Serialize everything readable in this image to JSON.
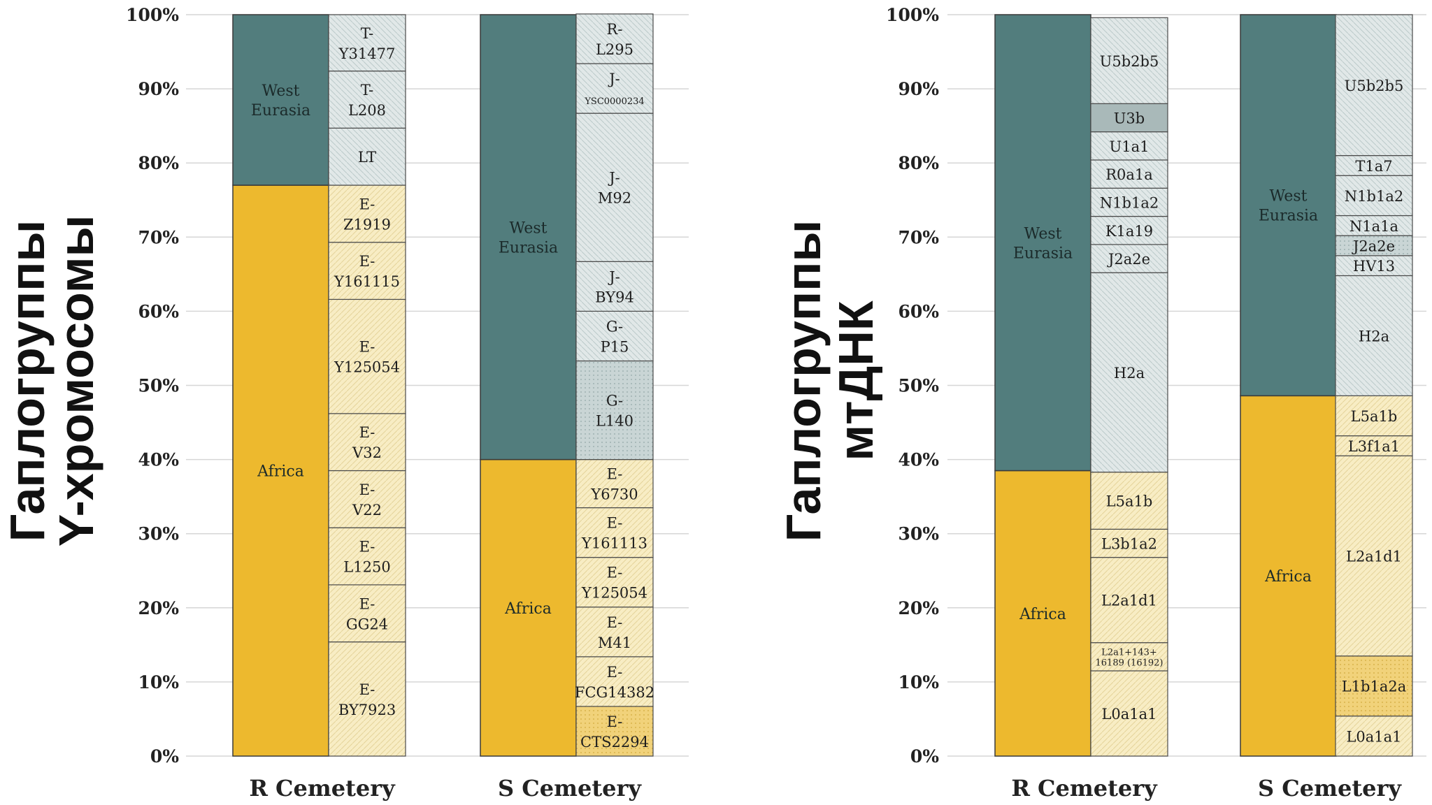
{
  "colors": {
    "africa": "#edb92e",
    "west_eurasia": "#527d7d",
    "africa_light": "#f8edc4",
    "eurasia_light": "#dbe4e4",
    "u3b": "#a9b9b9"
  },
  "titles": {
    "y": [
      "Гаплогруппы",
      "Y-хромосомы"
    ],
    "mt": [
      "Гаплогруппы",
      "мтДНК"
    ]
  },
  "chart_data": [
    {
      "type": "stacked-bar",
      "title": "Гаплогруппы Y-хромосомы",
      "ylim": [
        0,
        100
      ],
      "yticks": [
        "0%",
        "10%",
        "20%",
        "30%",
        "40%",
        "50%",
        "60%",
        "70%",
        "80%",
        "90%",
        "100%"
      ],
      "bars": [
        {
          "category": "R Cemetery",
          "regions": [
            {
              "name": "Africa",
              "value": 77
            },
            {
              "name": "West Eurasia",
              "value": 23
            }
          ],
          "haplogroups": [
            {
              "label": [
                "E-",
                "BY7923"
              ],
              "value": 15.4,
              "group": "africa"
            },
            {
              "label": [
                "E-",
                "GG24"
              ],
              "value": 7.7,
              "group": "africa"
            },
            {
              "label": [
                "E-",
                "L1250"
              ],
              "value": 7.7,
              "group": "africa"
            },
            {
              "label": [
                "E-",
                "V22"
              ],
              "value": 7.7,
              "group": "africa"
            },
            {
              "label": [
                "E-",
                "V32"
              ],
              "value": 7.7,
              "group": "africa"
            },
            {
              "label": [
                "E-",
                "Y125054"
              ],
              "value": 15.4,
              "group": "africa"
            },
            {
              "label": [
                "E-",
                "Y161115"
              ],
              "value": 7.7,
              "group": "africa"
            },
            {
              "label": [
                "E-",
                "Z1919"
              ],
              "value": 7.7,
              "group": "africa"
            },
            {
              "label": [
                "LT"
              ],
              "value": 7.7,
              "group": "eurasia"
            },
            {
              "label": [
                "T-",
                "L208"
              ],
              "value": 7.7,
              "group": "eurasia"
            },
            {
              "label": [
                "T-",
                "Y31477"
              ],
              "value": 7.6,
              "group": "eurasia"
            }
          ]
        },
        {
          "category": "S Cemetery",
          "regions": [
            {
              "name": "Africa",
              "value": 40
            },
            {
              "name": "West Eurasia",
              "value": 60
            }
          ],
          "haplogroups": [
            {
              "label": [
                "E-",
                "CTS2294"
              ],
              "value": 6.7,
              "group": "africa",
              "dark": true
            },
            {
              "label": [
                "E-",
                "FCG14382"
              ],
              "value": 6.7,
              "group": "africa"
            },
            {
              "label": [
                "E-",
                "M41"
              ],
              "value": 6.7,
              "group": "africa"
            },
            {
              "label": [
                "E-",
                "Y125054"
              ],
              "value": 6.7,
              "group": "africa"
            },
            {
              "label": [
                "E-",
                "Y161113"
              ],
              "value": 6.7,
              "group": "africa"
            },
            {
              "label": [
                "E-",
                "Y6730"
              ],
              "value": 6.5,
              "group": "africa"
            },
            {
              "label": [
                "G-",
                "L140"
              ],
              "value": 13.3,
              "group": "eurasia",
              "dark": true
            },
            {
              "label": [
                "G-",
                "P15"
              ],
              "value": 6.7,
              "group": "eurasia"
            },
            {
              "label": [
                "J-",
                "BY94"
              ],
              "value": 6.7,
              "group": "eurasia"
            },
            {
              "label": [
                "J-",
                "M92"
              ],
              "value": 20,
              "group": "eurasia"
            },
            {
              "label": [
                "J-",
                "YSC0000234"
              ],
              "value": 6.7,
              "group": "eurasia",
              "smallSecond": true
            },
            {
              "label": [
                "R-",
                "L295"
              ],
              "value": 6.7,
              "group": "eurasia"
            }
          ]
        }
      ]
    },
    {
      "type": "stacked-bar",
      "title": "Гаплогруппы мтДНК",
      "ylim": [
        0,
        100
      ],
      "yticks": [
        "0%",
        "10%",
        "20%",
        "30%",
        "40%",
        "50%",
        "60%",
        "70%",
        "80%",
        "90%",
        "100%"
      ],
      "bars": [
        {
          "category": "R Cemetery",
          "regions": [
            {
              "name": "Africa",
              "value": 38.5
            },
            {
              "name": "West Eurasia",
              "value": 61.5
            }
          ],
          "haplogroups": [
            {
              "label": [
                "L0a1a1"
              ],
              "value": 11.5,
              "group": "africa"
            },
            {
              "label": [
                "L2a1+143+",
                "16189 (16192)"
              ],
              "value": 3.8,
              "group": "africa",
              "small": true
            },
            {
              "label": [
                "L2a1d1"
              ],
              "value": 11.5,
              "group": "africa"
            },
            {
              "label": [
                "L3b1a2"
              ],
              "value": 3.8,
              "group": "africa"
            },
            {
              "label": [
                "L5a1b"
              ],
              "value": 7.7,
              "group": "africa"
            },
            {
              "label": [
                "H2a"
              ],
              "value": 26.9,
              "group": "eurasia"
            },
            {
              "label": [
                "J2a2e"
              ],
              "value": 3.8,
              "group": "eurasia"
            },
            {
              "label": [
                "K1a19"
              ],
              "value": 3.8,
              "group": "eurasia"
            },
            {
              "label": [
                "N1b1a2"
              ],
              "value": 3.8,
              "group": "eurasia"
            },
            {
              "label": [
                "R0a1a"
              ],
              "value": 3.8,
              "group": "eurasia"
            },
            {
              "label": [
                "U1a1"
              ],
              "value": 3.8,
              "group": "eurasia"
            },
            {
              "label": [
                "U3b"
              ],
              "value": 3.8,
              "group": "u3b"
            },
            {
              "label": [
                "U5b2b5"
              ],
              "value": 11.6,
              "group": "eurasia"
            }
          ]
        },
        {
          "category": "S Cemetery",
          "regions": [
            {
              "name": "Africa",
              "value": 48.6
            },
            {
              "name": "West Eurasia",
              "value": 51.4
            }
          ],
          "haplogroups": [
            {
              "label": [
                "L0a1a1"
              ],
              "value": 5.4,
              "group": "africa"
            },
            {
              "label": [
                "L1b1a2a"
              ],
              "value": 8.1,
              "group": "africa",
              "dark": true
            },
            {
              "label": [
                "L2a1d1"
              ],
              "value": 27,
              "group": "africa"
            },
            {
              "label": [
                "L3f1a1"
              ],
              "value": 2.7,
              "group": "africa"
            },
            {
              "label": [
                "L5a1b"
              ],
              "value": 5.4,
              "group": "africa"
            },
            {
              "label": [
                "H2a"
              ],
              "value": 16.2,
              "group": "eurasia"
            },
            {
              "label": [
                "HV13"
              ],
              "value": 2.7,
              "group": "eurasia"
            },
            {
              "label": [
                "J2a2e"
              ],
              "value": 2.7,
              "group": "eurasia",
              "dark": true
            },
            {
              "label": [
                "N1a1a"
              ],
              "value": 2.7,
              "group": "eurasia"
            },
            {
              "label": [
                "N1b1a2"
              ],
              "value": 5.4,
              "group": "eurasia"
            },
            {
              "label": [
                "T1a7"
              ],
              "value": 2.7,
              "group": "eurasia"
            },
            {
              "label": [
                "U5b2b5"
              ],
              "value": 19,
              "group": "eurasia"
            }
          ]
        }
      ]
    }
  ]
}
